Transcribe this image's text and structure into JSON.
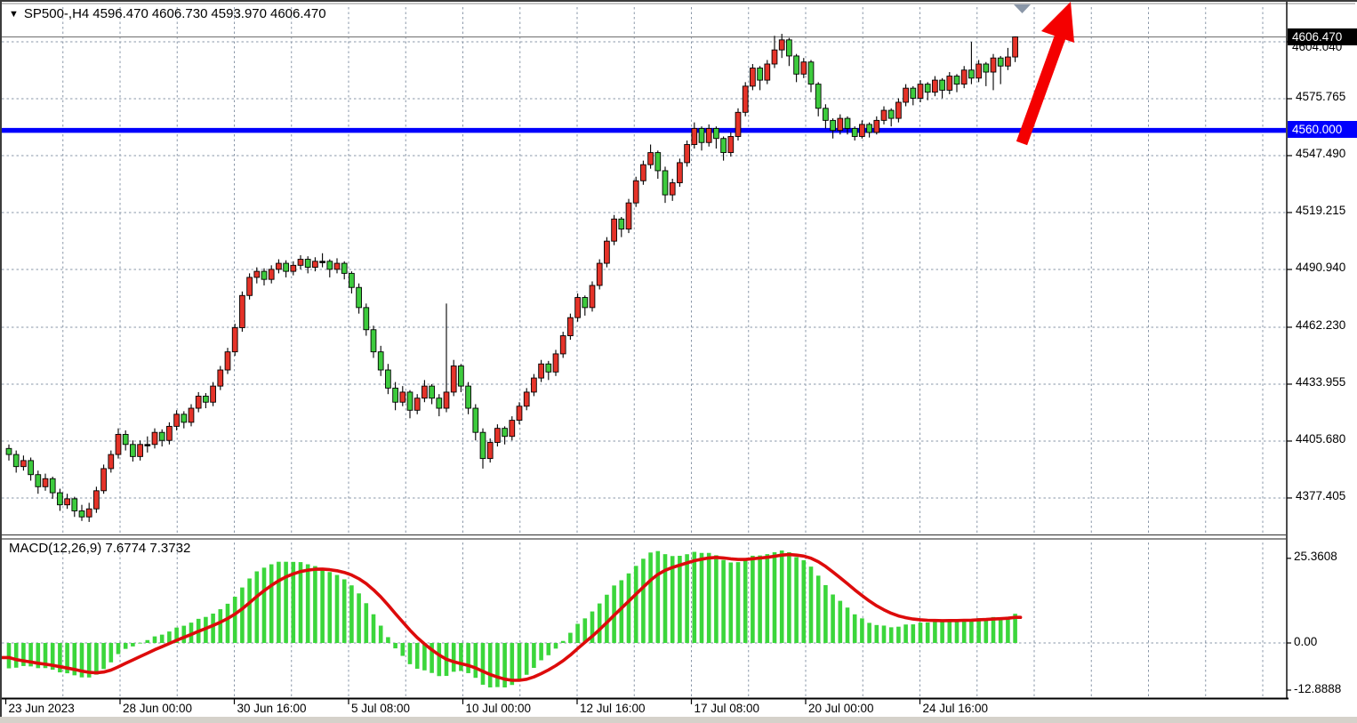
{
  "header": {
    "symbol_period": "SP500-,H4",
    "open": "4596.470",
    "high": "4606.730",
    "low": "4593.970",
    "close": "4606.470",
    "collapse_icon": "down-triangle"
  },
  "price_axis": {
    "current": {
      "label": "4606.470"
    },
    "level": {
      "label": "4560.000"
    },
    "hidden_label": "4604.040",
    "ticks": [
      "4604.040",
      "4575.765",
      "4547.490",
      "4519.215",
      "4490.940",
      "4462.230",
      "4433.955",
      "4405.680",
      "4377.405"
    ]
  },
  "time_axis": {
    "labels": [
      "23 Jun 2023",
      "28 Jun 00:00",
      "30 Jun 16:00",
      "5 Jul 08:00",
      "10 Jul 00:00",
      "12 Jul 16:00",
      "17 Jul 08:00",
      "20 Jul 00:00",
      "24 Jul 16:00"
    ]
  },
  "macd_panel": {
    "display": "MACD(12,26,9) 7.6774 7.3732",
    "name": "MACD",
    "fast": 12,
    "slow": 26,
    "signal_period": 9,
    "macd_value": "7.6774",
    "signal_value": "7.3732",
    "ticks": [
      "25.3608",
      "0.00",
      "-12.8888"
    ]
  },
  "annotations": {
    "trend_arrow": {
      "type": "up-right-arrow",
      "color": "#f40000"
    },
    "anchor_marker": {
      "type": "down-triangle",
      "color": "#8a97a8"
    }
  },
  "colors": {
    "bull_candle": "#e53329",
    "bear_candle": "#3dcb3d",
    "candle_outline": "#000000",
    "grid": "#8a97a8",
    "level_line": "#0000fd",
    "current_price_line": "#808080",
    "macd_bar": "#3bd63b",
    "macd_signal": "#dd0b0b",
    "current_label_bg": "#000000",
    "level_label_bg": "#0000fd"
  },
  "chart_data": {
    "type": "candlestick",
    "symbol": "SP500-",
    "timeframe": "H4",
    "title": "SP500-,H4",
    "ylabel_ticks": [
      4604.04,
      4575.765,
      4547.49,
      4519.215,
      4490.94,
      4462.23,
      4433.955,
      4405.68,
      4377.405
    ],
    "current_price": 4606.47,
    "level_line": 4560.0,
    "x_tick_labels": [
      "23 Jun 2023",
      "28 Jun 00:00",
      "30 Jun 16:00",
      "5 Jul 08:00",
      "10 Jul 00:00",
      "12 Jul 16:00",
      "17 Jul 08:00",
      "20 Jul 00:00",
      "24 Jul 16:00"
    ],
    "indicator": {
      "type": "MACD",
      "fast": 12,
      "slow": 26,
      "signal": 9,
      "last_macd": 7.6774,
      "last_signal": 7.3732,
      "scale_ticks": [
        25.3608,
        0.0,
        -12.8888
      ]
    },
    "candles": [
      [
        4402,
        4404,
        4396,
        4399
      ],
      [
        4399,
        4401,
        4390,
        4393
      ],
      [
        4393,
        4398.5,
        4391,
        4396
      ],
      [
        4396,
        4397.5,
        4386,
        4389
      ],
      [
        4389,
        4391,
        4379.5,
        4383
      ],
      [
        4383,
        4389.5,
        4381,
        4387
      ],
      [
        4387,
        4388,
        4377,
        4380
      ],
      [
        4380,
        4382,
        4371,
        4374
      ],
      [
        4374,
        4379.5,
        4372,
        4377
      ],
      [
        4377,
        4378,
        4368,
        4371
      ],
      [
        4371,
        4374,
        4366,
        4368
      ],
      [
        4368,
        4375,
        4365.5,
        4372
      ],
      [
        4372,
        4383,
        4370,
        4381
      ],
      [
        4381,
        4394,
        4379.5,
        4392
      ],
      [
        4392,
        4401,
        4390,
        4399
      ],
      [
        4399,
        4412,
        4397,
        4409
      ],
      [
        4409,
        4411,
        4401,
        4404
      ],
      [
        4404,
        4406,
        4395.5,
        4398
      ],
      [
        4398,
        4406,
        4396,
        4404
      ],
      [
        4404,
        4408,
        4400,
        4404
      ],
      [
        4404,
        4412,
        4402,
        4410
      ],
      [
        4410,
        4411.5,
        4403,
        4406
      ],
      [
        4406,
        4415,
        4404,
        4413
      ],
      [
        4413,
        4421,
        4411,
        4419
      ],
      [
        4419,
        4420.5,
        4412,
        4415
      ],
      [
        4415,
        4424,
        4413,
        4422
      ],
      [
        4422,
        4430,
        4420,
        4428
      ],
      [
        4428,
        4429.5,
        4422,
        4425
      ],
      [
        4425,
        4435,
        4423,
        4433
      ],
      [
        4433,
        4443,
        4431,
        4441
      ],
      [
        4441,
        4452,
        4439,
        4450
      ],
      [
        4450,
        4464,
        4448,
        4462
      ],
      [
        4462,
        4480,
        4460,
        4478
      ],
      [
        4478,
        4489,
        4476,
        4487
      ],
      [
        4487,
        4492,
        4484,
        4490
      ],
      [
        4490,
        4491.5,
        4483,
        4486
      ],
      [
        4486,
        4493,
        4484,
        4491
      ],
      [
        4491,
        4496,
        4489,
        4494
      ],
      [
        4494,
        4495.5,
        4487,
        4490
      ],
      [
        4490,
        4495,
        4488,
        4493
      ],
      [
        4493,
        4498,
        4491,
        4496
      ],
      [
        4496,
        4497.5,
        4489,
        4492
      ],
      [
        4492,
        4497,
        4490,
        4495
      ],
      [
        4495,
        4499,
        4492,
        4495
      ],
      [
        4495,
        4496,
        4487,
        4491
      ],
      [
        4491,
        4496.5,
        4489,
        4494
      ],
      [
        4494,
        4495,
        4486,
        4489
      ],
      [
        4489,
        4490,
        4479,
        4482
      ],
      [
        4482,
        4484,
        4469,
        4472
      ],
      [
        4472,
        4474,
        4458,
        4461
      ],
      [
        4461,
        4463,
        4447,
        4450
      ],
      [
        4450,
        4453,
        4438,
        4441
      ],
      [
        4441,
        4444,
        4429,
        4432
      ],
      [
        4432,
        4435,
        4421,
        4425
      ],
      [
        4425,
        4433,
        4423,
        4430
      ],
      [
        4430,
        4431,
        4417,
        4421
      ],
      [
        4421,
        4429,
        4419,
        4427
      ],
      [
        4427,
        4436,
        4425,
        4433
      ],
      [
        4433,
        4434,
        4424,
        4427
      ],
      [
        4427,
        4429,
        4418,
        4422
      ],
      [
        4422,
        4474,
        4420,
        4430
      ],
      [
        4430,
        4446,
        4428,
        4443
      ],
      [
        4443,
        4444,
        4430,
        4433
      ],
      [
        4433,
        4435,
        4419,
        4422
      ],
      [
        4422,
        4424,
        4406,
        4410
      ],
      [
        4410,
        4412,
        4392,
        4397
      ],
      [
        4397,
        4407,
        4395,
        4405
      ],
      [
        4405,
        4414,
        4403,
        4412
      ],
      [
        4412,
        4413,
        4404,
        4408
      ],
      [
        4408,
        4418,
        4406,
        4416
      ],
      [
        4416,
        4425,
        4414,
        4423
      ],
      [
        4423,
        4432,
        4421,
        4430
      ],
      [
        4430,
        4439,
        4428,
        4437
      ],
      [
        4437,
        4446,
        4435,
        4444
      ],
      [
        4444,
        4445.5,
        4436,
        4440
      ],
      [
        4440,
        4451,
        4438,
        4449
      ],
      [
        4449,
        4460,
        4447,
        4458
      ],
      [
        4458,
        4469,
        4456,
        4467
      ],
      [
        4467,
        4479,
        4465,
        4477
      ],
      [
        4477,
        4478,
        4468,
        4472
      ],
      [
        4472,
        4485,
        4470,
        4483
      ],
      [
        4483,
        4496,
        4481,
        4494
      ],
      [
        4494,
        4507,
        4492,
        4505
      ],
      [
        4505,
        4518,
        4503,
        4516
      ],
      [
        4516,
        4517,
        4507,
        4511
      ],
      [
        4511,
        4526,
        4509,
        4524
      ],
      [
        4524,
        4537,
        4522,
        4535
      ],
      [
        4535,
        4545,
        4533,
        4543
      ],
      [
        4543,
        4553,
        4541,
        4549
      ],
      [
        4549,
        4550,
        4536,
        4540
      ],
      [
        4540,
        4542,
        4524,
        4528
      ],
      [
        4528,
        4536,
        4525,
        4534
      ],
      [
        4534,
        4546,
        4532,
        4544
      ],
      [
        4544,
        4555,
        4542,
        4553
      ],
      [
        4553,
        4564,
        4551,
        4561
      ],
      [
        4561,
        4562,
        4550,
        4554
      ],
      [
        4554,
        4563,
        4552,
        4561
      ],
      [
        4561,
        4562,
        4551,
        4556
      ],
      [
        4556,
        4557,
        4545,
        4549
      ],
      [
        4549,
        4559,
        4547,
        4557
      ],
      [
        4557,
        4571,
        4555,
        4569
      ],
      [
        4569,
        4584,
        4567,
        4582
      ],
      [
        4582,
        4593,
        4580,
        4591
      ],
      [
        4591,
        4592,
        4580,
        4585
      ],
      [
        4585,
        4595,
        4583,
        4593
      ],
      [
        4593,
        4607,
        4591,
        4600
      ],
      [
        4600,
        4608,
        4596,
        4605
      ],
      [
        4605,
        4606,
        4592,
        4597
      ],
      [
        4597,
        4598,
        4584,
        4588
      ],
      [
        4588,
        4596,
        4586,
        4594
      ],
      [
        4594,
        4595,
        4579,
        4583
      ],
      [
        4583,
        4584,
        4567,
        4571
      ],
      [
        4571,
        4573,
        4561,
        4565
      ],
      [
        4565,
        4566,
        4556,
        4560
      ],
      [
        4560,
        4568,
        4558,
        4566
      ],
      [
        4566,
        4567,
        4558,
        4561
      ],
      [
        4561,
        4562,
        4555,
        4557
      ],
      [
        4557,
        4565,
        4556,
        4563
      ],
      [
        4563,
        4564,
        4556.5,
        4559
      ],
      [
        4559,
        4567,
        4558,
        4565
      ],
      [
        4565,
        4572,
        4563,
        4570
      ],
      [
        4570,
        4571,
        4562,
        4566
      ],
      [
        4566,
        4576,
        4564,
        4574
      ],
      [
        4574,
        4583,
        4572,
        4581
      ],
      [
        4581,
        4582,
        4572.5,
        4576
      ],
      [
        4576,
        4585,
        4574,
        4583
      ],
      [
        4583,
        4584,
        4575,
        4579
      ],
      [
        4579,
        4587,
        4577,
        4585
      ],
      [
        4585,
        4586,
        4576,
        4580
      ],
      [
        4580,
        4589,
        4578,
        4587
      ],
      [
        4587,
        4588,
        4579,
        4583
      ],
      [
        4583,
        4592,
        4581,
        4590
      ],
      [
        4590,
        4604,
        4583,
        4586
      ],
      [
        4586,
        4595,
        4584,
        4593
      ],
      [
        4593,
        4594,
        4582,
        4589
      ],
      [
        4589,
        4598,
        4580,
        4596
      ],
      [
        4596,
        4597,
        4583,
        4592
      ],
      [
        4592,
        4601,
        4590,
        4596.5
      ],
      [
        4596.5,
        4606.73,
        4593.97,
        4606.47
      ]
    ]
  }
}
